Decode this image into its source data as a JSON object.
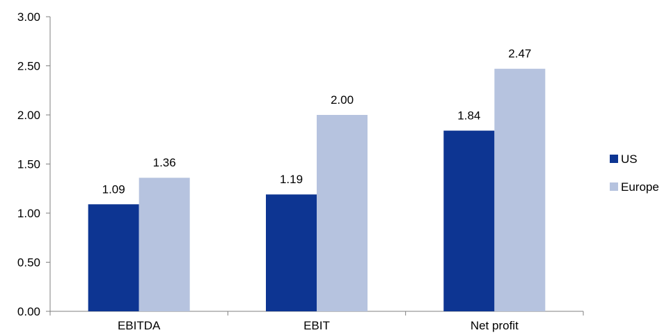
{
  "chart_data": {
    "type": "bar",
    "categories": [
      "EBITDA",
      "EBIT",
      "Net profit"
    ],
    "series": [
      {
        "name": "US",
        "values": [
          1.09,
          1.19,
          1.84
        ],
        "color": "#0d3592"
      },
      {
        "name": "Europe",
        "values": [
          1.36,
          2.0,
          2.47
        ],
        "color": "#b6c3df"
      }
    ],
    "data_labels": [
      [
        "1.09",
        "1.19",
        "1.84"
      ],
      [
        "1.36",
        "2.00",
        "2.47"
      ]
    ],
    "y_ticks": [
      0,
      0.5,
      1.0,
      1.5,
      2.0,
      2.5,
      3.0
    ],
    "y_tick_labels": [
      "0.00",
      "0.50",
      "1.00",
      "1.50",
      "2.00",
      "2.50",
      "3.00"
    ],
    "ylim": [
      0,
      3.0
    ],
    "title": "",
    "xlabel": "",
    "ylabel": "",
    "grid": false,
    "legend_position": "right"
  }
}
